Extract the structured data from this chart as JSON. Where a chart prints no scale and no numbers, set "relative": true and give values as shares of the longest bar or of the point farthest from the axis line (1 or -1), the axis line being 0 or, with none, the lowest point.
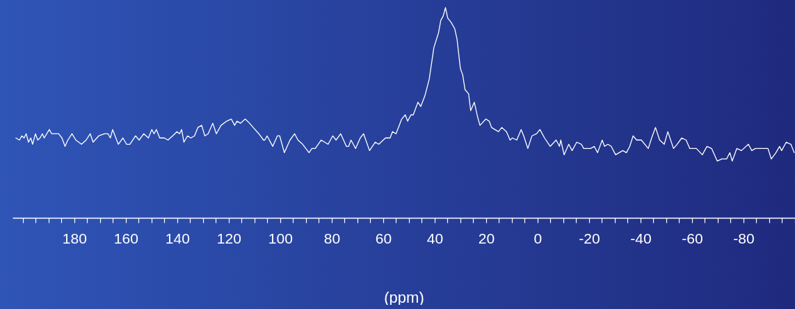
{
  "chart_data": {
    "type": "line",
    "xlabel": "(ppm)",
    "relative": true,
    "grid": false,
    "legend": false,
    "line_style": "solid",
    "marker": "none",
    "xlim": [
      204,
      -100
    ],
    "xticks": [
      {
        "value": 200,
        "label": null
      },
      {
        "value": 195,
        "label": null
      },
      {
        "value": 190,
        "label": null
      },
      {
        "value": 185,
        "label": null
      },
      180,
      {
        "value": 175,
        "label": null
      },
      {
        "value": 170,
        "label": null
      },
      {
        "value": 165,
        "label": null
      },
      160,
      {
        "value": 155,
        "label": null
      },
      {
        "value": 150,
        "label": null
      },
      {
        "value": 145,
        "label": null
      },
      140,
      {
        "value": 135,
        "label": null
      },
      {
        "value": 130,
        "label": null
      },
      {
        "value": 125,
        "label": null
      },
      120,
      {
        "value": 115,
        "label": null
      },
      {
        "value": 110,
        "label": null
      },
      {
        "value": 105,
        "label": null
      },
      100,
      {
        "value": 95,
        "label": null
      },
      {
        "value": 90,
        "label": null
      },
      {
        "value": 85,
        "label": null
      },
      80,
      {
        "value": 75,
        "label": null
      },
      {
        "value": 70,
        "label": null
      },
      {
        "value": 65,
        "label": null
      },
      60,
      {
        "value": 55,
        "label": null
      },
      {
        "value": 50,
        "label": null
      },
      {
        "value": 45,
        "label": null
      },
      40,
      {
        "value": 35,
        "label": null
      },
      {
        "value": 30,
        "label": null
      },
      {
        "value": 25,
        "label": null
      },
      20,
      {
        "value": 15,
        "label": null
      },
      {
        "value": 10,
        "label": null
      },
      {
        "value": 5,
        "label": null
      },
      0,
      {
        "value": -5,
        "label": null
      },
      {
        "value": -10,
        "label": null
      },
      {
        "value": -15,
        "label": null
      },
      -20,
      {
        "value": -25,
        "label": null
      },
      {
        "value": -30,
        "label": null
      },
      {
        "value": -35,
        "label": null
      },
      -40,
      {
        "value": -45,
        "label": null
      },
      {
        "value": -50,
        "label": null
      },
      {
        "value": -55,
        "label": null
      },
      -60,
      {
        "value": -65,
        "label": null
      },
      {
        "value": -70,
        "label": null
      },
      {
        "value": -75,
        "label": null
      },
      -80,
      {
        "value": -85,
        "label": null
      },
      {
        "value": -90,
        "label": null
      },
      {
        "value": -95,
        "label": null
      },
      {
        "value": -100,
        "label": null
      }
    ],
    "series": [
      {
        "color": "#ffffff",
        "x": [
          202.7,
          201.3,
          200.4,
          199.5,
          198.7,
          197.8,
          196.9,
          196.2,
          195.1,
          194.2,
          193.3,
          192.4,
          191.7,
          189.7,
          188.8,
          187.5,
          186.1,
          184.8,
          183.6,
          182.5,
          180.9,
          179.4,
          177.2,
          175.4,
          173.8,
          172.7,
          170.5,
          168.2,
          166.9,
          166.0,
          165.1,
          162.9,
          161.1,
          159.7,
          158.4,
          156.2,
          154.8,
          153.0,
          151.2,
          149.9,
          149.0,
          148.1,
          146.8,
          145.0,
          143.6,
          141.8,
          140.1,
          139.1,
          138.3,
          137.4,
          136.0,
          134.7,
          133.3,
          132.0,
          130.5,
          129.3,
          128.0,
          126.2,
          124.8,
          123.0,
          120.8,
          119.0,
          117.7,
          116.8,
          115.4,
          113.6,
          111.9,
          110.5,
          108.3,
          106.5,
          106.0,
          105.1,
          102.9,
          101.1,
          100.2,
          98.4,
          96.2,
          94.4,
          93.1,
          91.3,
          88.8,
          87.7,
          86.4,
          84.1,
          81.4,
          79.6,
          78.3,
          76.5,
          74.3,
          73.4,
          72.5,
          70.7,
          68.9,
          67.6,
          65.3,
          63.1,
          61.7,
          59.1,
          57.3,
          56.4,
          55.0,
          52.8,
          51.4,
          50.5,
          49.2,
          48.3,
          46.5,
          45.4,
          43.8,
          42.1,
          40.3,
          38.5,
          37.6,
          36.7,
          35.8,
          34.9,
          33.6,
          32.2,
          31.3,
          30.0,
          29.1,
          28.2,
          26.8,
          26.0,
          24.6,
          23.3,
          22.4,
          20.1,
          18.8,
          17.9,
          16.6,
          15.2,
          13.9,
          12.1,
          10.7,
          9.8,
          8.1,
          6.4,
          5.4,
          3.8,
          2.2,
          0.4,
          -0.9,
          -2.7,
          -4.9,
          -7.2,
          -8.5,
          -9.0,
          -10.3,
          -12.1,
          -13.4,
          -15.2,
          -17.0,
          -17.9,
          -20.6,
          -22.0,
          -23.3,
          -25.1,
          -26.0,
          -27.3,
          -28.6,
          -30.3,
          -33.1,
          -34.5,
          -35.8,
          -37.1,
          -38.5,
          -40.3,
          -43.0,
          -44.3,
          -45.8,
          -47.4,
          -49.2,
          -50.6,
          -52.8,
          -54.2,
          -56.0,
          -57.7,
          -59.1,
          -61.7,
          -64.0,
          -65.8,
          -67.6,
          -69.8,
          -71.6,
          -73.4,
          -74.7,
          -75.6,
          -77.4,
          -79.2,
          -81.9,
          -83.2,
          -84.6,
          -85.9,
          -87.7,
          -89.5,
          -90.8,
          -92.6,
          -94.0,
          -94.8,
          -96.6,
          -98.4,
          -99.7
        ],
        "values": [
          0.38,
          0.37,
          0.39,
          0.38,
          0.4,
          0.36,
          0.38,
          0.35,
          0.4,
          0.37,
          0.38,
          0.4,
          0.38,
          0.42,
          0.4,
          0.4,
          0.4,
          0.38,
          0.34,
          0.37,
          0.4,
          0.37,
          0.35,
          0.37,
          0.4,
          0.36,
          0.39,
          0.4,
          0.4,
          0.38,
          0.42,
          0.35,
          0.38,
          0.35,
          0.35,
          0.39,
          0.37,
          0.4,
          0.38,
          0.42,
          0.4,
          0.42,
          0.38,
          0.38,
          0.37,
          0.39,
          0.41,
          0.4,
          0.42,
          0.36,
          0.39,
          0.38,
          0.39,
          0.43,
          0.44,
          0.39,
          0.4,
          0.45,
          0.4,
          0.44,
          0.46,
          0.47,
          0.44,
          0.46,
          0.45,
          0.47,
          0.45,
          0.43,
          0.4,
          0.37,
          0.37,
          0.39,
          0.34,
          0.39,
          0.39,
          0.31,
          0.37,
          0.4,
          0.37,
          0.35,
          0.31,
          0.33,
          0.33,
          0.37,
          0.35,
          0.39,
          0.37,
          0.4,
          0.34,
          0.34,
          0.37,
          0.33,
          0.38,
          0.4,
          0.32,
          0.36,
          0.35,
          0.38,
          0.38,
          0.41,
          0.4,
          0.47,
          0.49,
          0.46,
          0.49,
          0.49,
          0.55,
          0.53,
          0.58,
          0.66,
          0.81,
          0.88,
          0.94,
          0.96,
          1.0,
          0.95,
          0.93,
          0.9,
          0.85,
          0.71,
          0.68,
          0.61,
          0.59,
          0.51,
          0.55,
          0.48,
          0.44,
          0.47,
          0.46,
          0.43,
          0.42,
          0.41,
          0.43,
          0.41,
          0.37,
          0.38,
          0.37,
          0.42,
          0.39,
          0.33,
          0.39,
          0.4,
          0.42,
          0.38,
          0.34,
          0.37,
          0.34,
          0.37,
          0.3,
          0.35,
          0.32,
          0.36,
          0.35,
          0.33,
          0.33,
          0.34,
          0.31,
          0.37,
          0.34,
          0.35,
          0.34,
          0.3,
          0.32,
          0.31,
          0.34,
          0.39,
          0.37,
          0.37,
          0.33,
          0.38,
          0.43,
          0.37,
          0.35,
          0.41,
          0.33,
          0.35,
          0.38,
          0.37,
          0.33,
          0.33,
          0.3,
          0.34,
          0.33,
          0.27,
          0.28,
          0.28,
          0.31,
          0.27,
          0.33,
          0.32,
          0.35,
          0.32,
          0.33,
          0.33,
          0.33,
          0.33,
          0.28,
          0.31,
          0.34,
          0.32,
          0.36,
          0.35,
          0.31
        ]
      }
    ]
  }
}
